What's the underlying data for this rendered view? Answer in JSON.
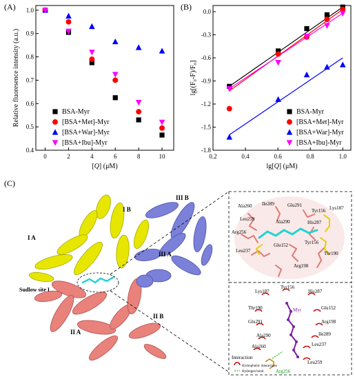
{
  "panel_labels": {
    "a": "(A)",
    "b": "(B)",
    "c": "(C)"
  },
  "colors": {
    "bsa_myr": "#000000",
    "met_myr": "#ff0000",
    "war_myr": "#0000ff",
    "ibu_myr": "#ff00ff",
    "domain_I": "#e6e600",
    "domain_II": "#e8827a",
    "domain_III": "#7b80d8",
    "ligand": "#22d3d3",
    "residue_tyr": "#e0d000",
    "ligand_2d": "#7a1fa2",
    "hydrophobic": "#cc0000",
    "hbond": "#00a000"
  },
  "chart_data": [
    {
      "panel": "(A)",
      "type": "scatter",
      "xlabel_prefix": "[",
      "xlabel_var": "Q",
      "xlabel_suffix": "] (μM)",
      "ylabel": "Relative fluoresence intensity (a.u.)",
      "xlim": [
        -0.8,
        11
      ],
      "ylim": [
        0.4,
        1.02
      ],
      "xticks": [
        0,
        2,
        4,
        6,
        8,
        10
      ],
      "yticks": [
        0.4,
        0.5,
        0.6,
        0.7,
        0.8,
        0.9,
        1.0
      ],
      "yticklabels": [
        "0.4",
        "0.5",
        "0.6",
        "0.7",
        "0.8",
        "0.9",
        "1.0"
      ],
      "grid": false,
      "legend_position": "bottom-left",
      "series": [
        {
          "name": "BSA-Myr",
          "marker": "square",
          "color": "#000000",
          "x": [
            0,
            2,
            4,
            6,
            8,
            10
          ],
          "y": [
            1.0,
            0.905,
            0.775,
            0.625,
            0.53,
            0.465
          ]
        },
        {
          "name": "[BSA+Met]-Myr",
          "marker": "circle",
          "color": "#ff0000",
          "x": [
            0,
            2,
            4,
            6,
            8,
            10
          ],
          "y": [
            1.0,
            0.95,
            0.79,
            0.7,
            0.565,
            0.495
          ]
        },
        {
          "name": "[BSA+War]-Myr",
          "marker": "triangle-up",
          "color": "#0000ff",
          "x": [
            0,
            2,
            4,
            6,
            8,
            10
          ],
          "y": [
            1.0,
            0.975,
            0.93,
            0.865,
            0.84,
            0.825
          ]
        },
        {
          "name": "[BSA+Ibu]-Myr",
          "marker": "triangle-down",
          "color": "#ff00ff",
          "x": [
            0,
            2,
            4,
            6,
            8,
            10
          ],
          "y": [
            1.0,
            0.91,
            0.82,
            0.725,
            0.605,
            0.52
          ]
        }
      ]
    },
    {
      "panel": "(B)",
      "type": "scatter",
      "xlabel_prefix": "lg[",
      "xlabel_var": "Q",
      "xlabel_suffix": "] (μM)",
      "ylabel": "lg[(F₀-F)/F₀]",
      "xlim": [
        0.2,
        1.05
      ],
      "ylim": [
        -1.8,
        0.08
      ],
      "xticks": [
        0.2,
        0.4,
        0.6,
        0.8,
        1.0
      ],
      "xticklabels": [
        "0.2",
        "0.4",
        "0.6",
        "0.8",
        "1.0"
      ],
      "yticks": [
        -1.8,
        -1.5,
        -1.2,
        -0.9,
        -0.6,
        -0.3,
        0.0
      ],
      "yticklabels": [
        "-1.8",
        "-1.5",
        "-1.2",
        "-0.9",
        "-0.6",
        "-0.3",
        "0.0"
      ],
      "grid": false,
      "legend_position": "bottom-right",
      "series": [
        {
          "name": "BSA-Myr",
          "marker": "square",
          "color": "#000000",
          "x": [
            0.301,
            0.602,
            0.778,
            0.903,
            1.0
          ],
          "y": [
            -0.97,
            -0.51,
            -0.22,
            -0.04,
            0.06
          ],
          "fit": [
            [
              0.301,
              -0.97
            ],
            [
              1.0,
              0.06
            ]
          ]
        },
        {
          "name": "[BSA+Met]-Myr",
          "marker": "circle",
          "color": "#ff0000",
          "x": [
            0.301,
            0.602,
            0.778,
            0.903,
            1.0
          ],
          "y": [
            -1.26,
            -0.55,
            -0.33,
            -0.1,
            0.03
          ],
          "fit": [
            [
              0.301,
              -1.03
            ],
            [
              1.0,
              0.03
            ]
          ]
        },
        {
          "name": "[BSA+War]-Myr",
          "marker": "triangle-up",
          "color": "#0000ff",
          "x": [
            0.301,
            0.602,
            0.778,
            0.903,
            1.0
          ],
          "y": [
            -1.63,
            -1.14,
            -0.82,
            -0.72,
            -0.69
          ],
          "fit": [
            [
              0.301,
              -1.6
            ],
            [
              1.0,
              -0.6
            ]
          ]
        },
        {
          "name": "[BSA+Ibu]-Myr",
          "marker": "triangle-down",
          "color": "#ff00ff",
          "x": [
            0.301,
            0.602,
            0.778,
            0.903,
            1.0
          ],
          "y": [
            -1.0,
            -0.66,
            -0.32,
            -0.18,
            -0.02
          ],
          "fit": [
            [
              0.301,
              -1.0
            ],
            [
              1.0,
              -0.02
            ]
          ]
        }
      ]
    }
  ],
  "structure": {
    "domain_labels": [
      "I B",
      "I A",
      "III B",
      "III A",
      "II A",
      "II B"
    ],
    "site_label": "Sudlow site I",
    "residues_3d": [
      "Ala260",
      "Ile289",
      "Glu291",
      "Tyr156",
      "Lys187",
      "Leu259",
      "Ala290",
      "His287",
      "Arg256",
      "Glu152",
      "Tyr156",
      "Leu237",
      "Thr190",
      "Arg198"
    ],
    "residues_2d": [
      "Lys187",
      "Tyr156",
      "His287",
      "Thr190",
      "Myr",
      "Glu152",
      "Arg198",
      "Glu291",
      "Ile289",
      "Ala290",
      "Leu237",
      "Ala260",
      "Arg256",
      "Leu259"
    ],
    "legend_title": "Interaction",
    "legend_items": [
      "Hydrophobic interactions",
      "Hydrogen bond"
    ]
  }
}
